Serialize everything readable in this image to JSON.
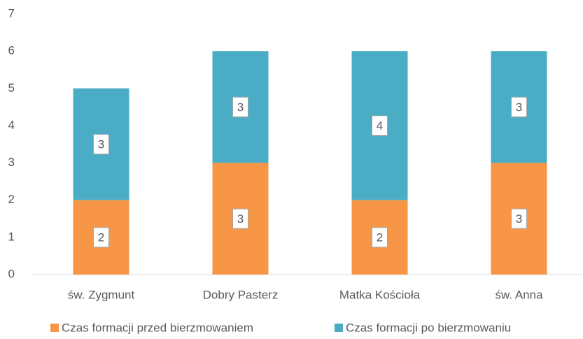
{
  "chart_data": {
    "type": "stacked_bar",
    "categories": [
      "św. Zygmunt",
      "Dobry Pasterz",
      "Matka Kościoła",
      "św. Anna"
    ],
    "series": [
      {
        "name": "Czas formacji przed bierzmowaniem",
        "color": "#f79646",
        "values": [
          2,
          3,
          2,
          3
        ]
      },
      {
        "name": "Czas formacji po bierzmowaniu",
        "color": "#4bacc6",
        "values": [
          3,
          3,
          4,
          3
        ]
      }
    ],
    "ylim": [
      0,
      7
    ],
    "yticks": [
      0,
      1,
      2,
      3,
      4,
      5,
      6,
      7
    ],
    "grid": false,
    "legend": "bottom",
    "data_labels": true
  }
}
